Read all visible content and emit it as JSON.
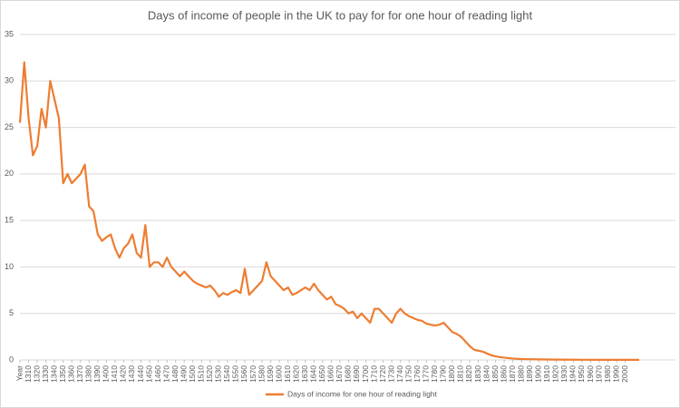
{
  "chart_data": {
    "type": "line",
    "title": "Days of income of people in the UK to pay for for one hour of reading light",
    "x": [
      1300,
      1305,
      1310,
      1315,
      1320,
      1325,
      1330,
      1335,
      1340,
      1345,
      1350,
      1355,
      1360,
      1365,
      1370,
      1375,
      1380,
      1385,
      1390,
      1395,
      1400,
      1405,
      1410,
      1415,
      1420,
      1425,
      1430,
      1435,
      1440,
      1445,
      1450,
      1455,
      1460,
      1465,
      1470,
      1475,
      1480,
      1485,
      1490,
      1495,
      1500,
      1505,
      1510,
      1515,
      1520,
      1525,
      1530,
      1535,
      1540,
      1545,
      1550,
      1555,
      1560,
      1565,
      1570,
      1575,
      1580,
      1585,
      1590,
      1595,
      1600,
      1605,
      1610,
      1615,
      1620,
      1625,
      1630,
      1635,
      1640,
      1645,
      1650,
      1655,
      1660,
      1665,
      1670,
      1675,
      1680,
      1685,
      1690,
      1695,
      1700,
      1705,
      1710,
      1715,
      1720,
      1725,
      1730,
      1735,
      1740,
      1745,
      1750,
      1755,
      1760,
      1765,
      1770,
      1775,
      1780,
      1785,
      1790,
      1795,
      1800,
      1805,
      1810,
      1815,
      1820,
      1825,
      1830,
      1835,
      1840,
      1845,
      1850,
      1855,
      1860,
      1865,
      1870,
      1875,
      1880,
      1890,
      1900,
      1920,
      1950,
      1980,
      2016
    ],
    "series": [
      {
        "name": "Days of income for one hour of reading light",
        "color": "#ED7D31",
        "values": [
          25.5,
          32,
          26,
          22,
          23,
          27,
          25,
          30,
          28,
          26,
          19,
          20,
          19,
          19.5,
          20,
          21,
          16.5,
          16,
          13.5,
          12.8,
          13.2,
          13.5,
          12,
          11,
          12,
          12.5,
          13.5,
          11.5,
          11,
          14.5,
          10,
          10.5,
          10.5,
          10,
          11,
          10,
          9.5,
          9,
          9.5,
          9,
          8.5,
          8.2,
          8,
          7.8,
          8,
          7.5,
          6.8,
          7.2,
          7,
          7.3,
          7.5,
          7.2,
          9.8,
          7,
          7.5,
          8,
          8.5,
          10.5,
          9,
          8.5,
          8,
          7.5,
          7.8,
          7,
          7.2,
          7.5,
          7.8,
          7.5,
          8.2,
          7.5,
          7,
          6.5,
          6.8,
          6,
          5.8,
          5.5,
          5,
          5.2,
          4.5,
          5,
          4.5,
          4,
          5.5,
          5.5,
          5,
          4.5,
          4,
          5,
          5.5,
          5,
          4.7,
          4.5,
          4.3,
          4.2,
          3.9,
          3.8,
          3.7,
          3.8,
          4,
          3.5,
          3,
          2.8,
          2.5,
          2,
          1.5,
          1.1,
          1,
          0.9,
          0.7,
          0.5,
          0.4,
          0.3,
          0.25,
          0.2,
          0.15,
          0.12,
          0.1,
          0.08,
          0.06,
          0.04,
          0.02,
          0.01,
          0.01
        ]
      }
    ],
    "xlim": [
      1300,
      2058
    ],
    "xticks": [
      {
        "value": 1300,
        "label": "Year"
      },
      1310,
      1320,
      1330,
      1340,
      1350,
      1360,
      1370,
      1380,
      1390,
      1400,
      1410,
      1420,
      1430,
      1440,
      1450,
      1460,
      1470,
      1480,
      1490,
      1500,
      1510,
      1520,
      1530,
      1540,
      1550,
      1560,
      1570,
      1580,
      1590,
      1600,
      1610,
      1620,
      1630,
      1640,
      1650,
      1660,
      1670,
      1680,
      1690,
      1700,
      1710,
      1720,
      1730,
      1740,
      1750,
      1760,
      1770,
      1780,
      1790,
      1800,
      1810,
      1820,
      1830,
      1840,
      1850,
      1860,
      1870,
      1880,
      1890,
      1900,
      1910,
      1920,
      1930,
      1940,
      1950,
      1960,
      1970,
      1980,
      1990,
      2000
    ],
    "ylim": [
      0,
      35
    ],
    "yticks": [
      0,
      5,
      10,
      15,
      20,
      25,
      30,
      35
    ],
    "grid": true,
    "legend": "bottom"
  }
}
